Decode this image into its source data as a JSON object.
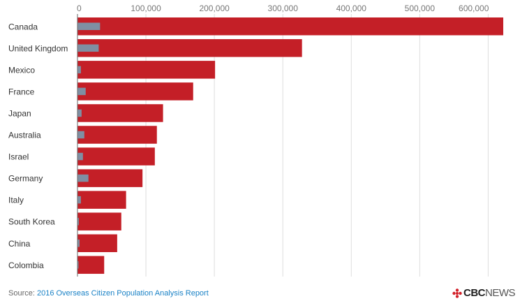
{
  "chart_data": {
    "type": "bar",
    "orientation": "horizontal",
    "categories": [
      "Canada",
      "United Kingdom",
      "Mexico",
      "France",
      "Japan",
      "Australia",
      "Israel",
      "Germany",
      "Italy",
      "South Korea",
      "China",
      "Colombia"
    ],
    "series": [
      {
        "color": "#c41f27",
        "values": [
          622000,
          328000,
          201000,
          169000,
          125000,
          116000,
          113000,
          95000,
          71000,
          64000,
          58000,
          39000
        ]
      },
      {
        "color": "#7f8fa3",
        "values": [
          33000,
          31000,
          5000,
          12000,
          6000,
          10000,
          8000,
          16000,
          5000,
          2000,
          3000,
          1000
        ]
      }
    ],
    "xticks": [
      "0",
      "100,000",
      "200,000",
      "300,000",
      "400,000",
      "500,000",
      "600,000"
    ],
    "xlim": [
      0,
      622000
    ],
    "grid": true
  },
  "footer": {
    "source_prefix": "Source: ",
    "source_link": "2016 Overseas Citizen Population Analysis Report",
    "logo_cbc": "CBC",
    "logo_news": "NEWS"
  }
}
